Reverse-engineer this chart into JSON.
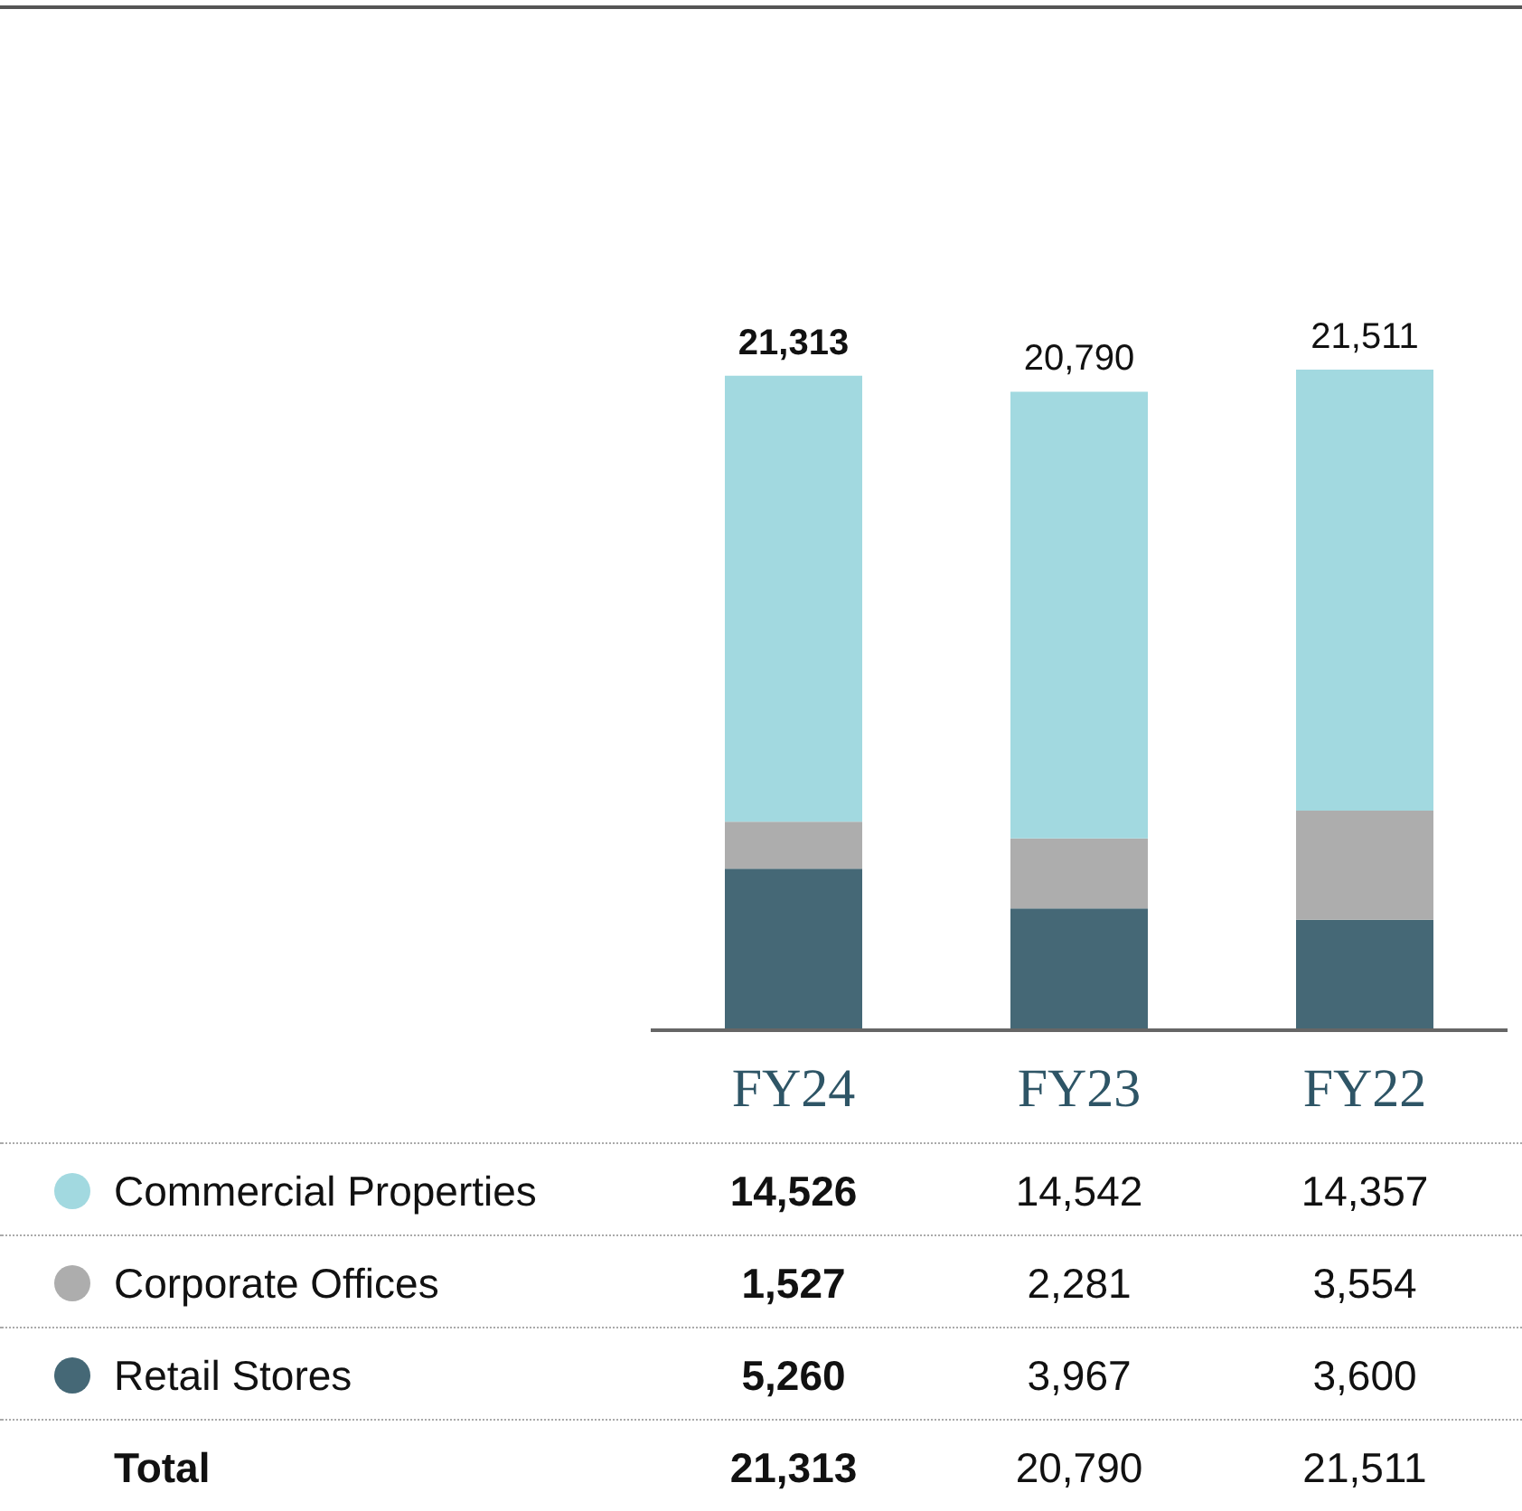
{
  "chart_data": {
    "type": "bar",
    "stacked": true,
    "categories": [
      "FY24",
      "FY23",
      "FY22"
    ],
    "series": [
      {
        "name": "Retail Stores",
        "color": "#456876",
        "values": [
          5260,
          3967,
          3600
        ],
        "value_labels": [
          "5,260",
          "3,967",
          "3,600"
        ]
      },
      {
        "name": "Corporate Offices",
        "color": "#adadad",
        "values": [
          1527,
          2281,
          3554
        ],
        "value_labels": [
          "1,527",
          "2,281",
          "3,554"
        ]
      },
      {
        "name": "Commercial Properties",
        "color": "#a2d9e0",
        "values": [
          14526,
          14542,
          14357
        ],
        "value_labels": [
          "14,526",
          "14,542",
          "14,357"
        ]
      }
    ],
    "totals": [
      "21,313",
      "20,790",
      "21,511"
    ],
    "annotations": [
      "Total"
    ],
    "legend": "bottom"
  }
}
